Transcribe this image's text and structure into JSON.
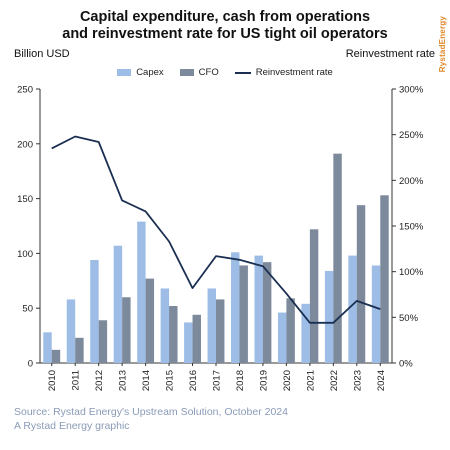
{
  "title_line1": "Capital expenditure, cash from operations",
  "title_line2": "and reinvestment rate for US tight oil operators",
  "brand": "RystadEnergy",
  "left_unit": "Billion USD",
  "right_unit": "Reinvestment rate",
  "legend": {
    "capex": "Capex",
    "cfo": "CFO",
    "reinvestment": "Reinvestment rate"
  },
  "source_line1": "Source: Rystad Energy's Upstream Solution, October 2024",
  "source_line2": "A Rystad Energy graphic",
  "colors": {
    "capex": "#9dbde6",
    "cfo": "#7d8a9b",
    "reinvestment": "#1b2f52",
    "source": "#8a9bb7",
    "brand": "#e08a2c"
  },
  "chart_data": {
    "type": "bar",
    "categories": [
      "2010",
      "2011",
      "2012",
      "2013",
      "2014",
      "2015",
      "2016",
      "2017",
      "2018",
      "2019",
      "2020",
      "2021",
      "2022",
      "2023",
      "2024"
    ],
    "series": [
      {
        "name": "Capex",
        "type": "bar",
        "axis": "left",
        "values": [
          28,
          58,
          94,
          107,
          129,
          68,
          37,
          68,
          101,
          98,
          46,
          54,
          84,
          98,
          89
        ]
      },
      {
        "name": "CFO",
        "type": "bar",
        "axis": "left",
        "values": [
          12,
          23,
          39,
          60,
          77,
          52,
          44,
          58,
          89,
          92,
          59,
          122,
          191,
          144,
          153
        ]
      },
      {
        "name": "Reinvestment rate",
        "type": "line",
        "axis": "right",
        "values": [
          235,
          248,
          242,
          178,
          166,
          133,
          82,
          117,
          113,
          106,
          76,
          44,
          44,
          68,
          59
        ]
      }
    ],
    "ylim_left": [
      0,
      250
    ],
    "yticks_left": [
      "0",
      "50",
      "100",
      "150",
      "200",
      "250"
    ],
    "ylim_right": [
      0,
      300
    ],
    "yticks_right": [
      "0%",
      "50%",
      "100%",
      "150%",
      "200%",
      "250%",
      "300%"
    ],
    "grid": false,
    "legend_position": "top-center"
  }
}
